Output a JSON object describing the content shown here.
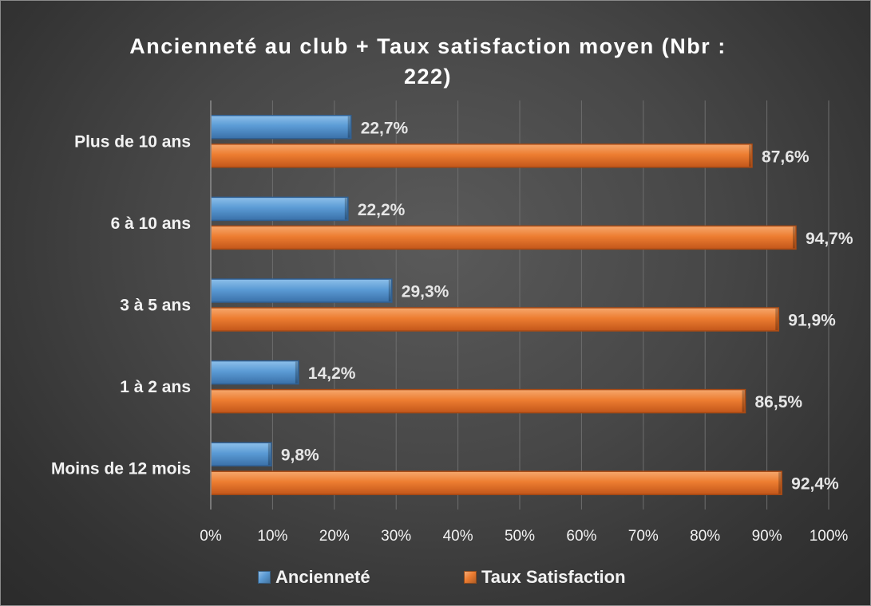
{
  "chart_data": {
    "type": "bar",
    "orientation": "horizontal",
    "title": "Ancienneté au club + Taux satisfaction moyen (Nbr : 222)",
    "title_lines": [
      "Ancienneté au club + Taux satisfaction moyen (Nbr :",
      "222)"
    ],
    "categories": [
      "Plus de 10 ans",
      "6 à 10 ans",
      "3 à 5 ans",
      "1 à 2 ans",
      "Moins de 12 mois"
    ],
    "series": [
      {
        "name": "Ancienneté",
        "color": "#5b9bd5",
        "values": [
          22.7,
          22.2,
          29.3,
          14.2,
          9.8
        ],
        "labels": [
          "22,7%",
          "22,2%",
          "29,3%",
          "14,2%",
          "9,8%"
        ]
      },
      {
        "name": "Taux Satisfaction",
        "color": "#ed7d31",
        "values": [
          87.6,
          94.7,
          91.9,
          86.5,
          92.4
        ],
        "labels": [
          "87,6%",
          "94,7%",
          "91,9%",
          "86,5%",
          "92,4%"
        ]
      }
    ],
    "xlim": [
      0,
      100
    ],
    "x_ticks": [
      "0%",
      "10%",
      "20%",
      "30%",
      "40%",
      "50%",
      "60%",
      "70%",
      "80%",
      "90%",
      "100%"
    ],
    "grid": true,
    "legend_position": "bottom"
  }
}
